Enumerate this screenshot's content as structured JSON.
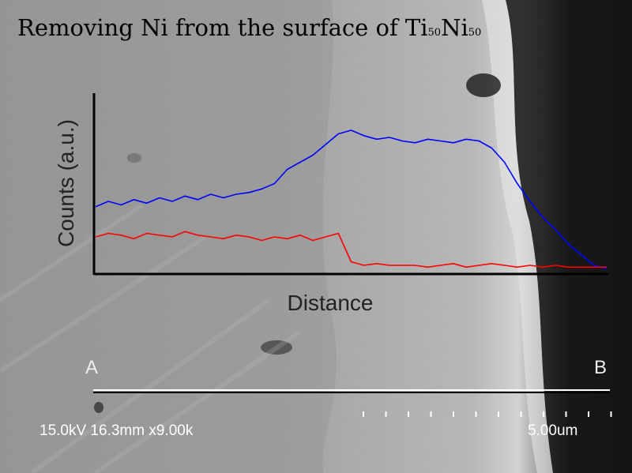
{
  "title": {
    "main": "Removing Ni from the surface of Ti",
    "sub1": "50",
    "mid": "Ni",
    "sub2": "50"
  },
  "colors": {
    "series_blue": "#0000ff",
    "series_red": "#ff0000",
    "axis": "#000000"
  },
  "chart_data": {
    "type": "line",
    "xlabel": "Distance",
    "ylabel": "Counts (a.u.)",
    "xlim": [
      0,
      1
    ],
    "ylim": [
      0,
      1
    ],
    "x": [
      0,
      0.025,
      0.05,
      0.075,
      0.1,
      0.125,
      0.15,
      0.175,
      0.2,
      0.225,
      0.25,
      0.275,
      0.3,
      0.325,
      0.35,
      0.375,
      0.4,
      0.425,
      0.45,
      0.475,
      0.5,
      0.525,
      0.55,
      0.575,
      0.6,
      0.625,
      0.65,
      0.675,
      0.7,
      0.725,
      0.75,
      0.775,
      0.8,
      0.825,
      0.85,
      0.875,
      0.9,
      0.925,
      0.95,
      0.975,
      1
    ],
    "series": [
      {
        "color": "#0000ff",
        "values": [
          0.37,
          0.4,
          0.38,
          0.41,
          0.39,
          0.42,
          0.4,
          0.43,
          0.41,
          0.44,
          0.42,
          0.44,
          0.45,
          0.47,
          0.5,
          0.58,
          0.62,
          0.66,
          0.72,
          0.78,
          0.8,
          0.77,
          0.75,
          0.76,
          0.74,
          0.73,
          0.75,
          0.74,
          0.73,
          0.75,
          0.74,
          0.7,
          0.62,
          0.5,
          0.4,
          0.31,
          0.24,
          0.16,
          0.1,
          0.04,
          0.02
        ]
      },
      {
        "color": "#ff0000",
        "values": [
          0.2,
          0.22,
          0.21,
          0.19,
          0.22,
          0.21,
          0.2,
          0.23,
          0.21,
          0.2,
          0.19,
          0.21,
          0.2,
          0.18,
          0.2,
          0.19,
          0.21,
          0.18,
          0.2,
          0.22,
          0.06,
          0.04,
          0.05,
          0.04,
          0.04,
          0.04,
          0.03,
          0.04,
          0.05,
          0.03,
          0.04,
          0.05,
          0.04,
          0.03,
          0.04,
          0.03,
          0.04,
          0.03,
          0.03,
          0.03,
          0.03
        ]
      }
    ]
  },
  "line_scan": {
    "start_label": "A",
    "end_label": "B"
  },
  "sem_info": {
    "params": "15.0kV 16.3mm x9.00k",
    "scale": "5.00um"
  }
}
